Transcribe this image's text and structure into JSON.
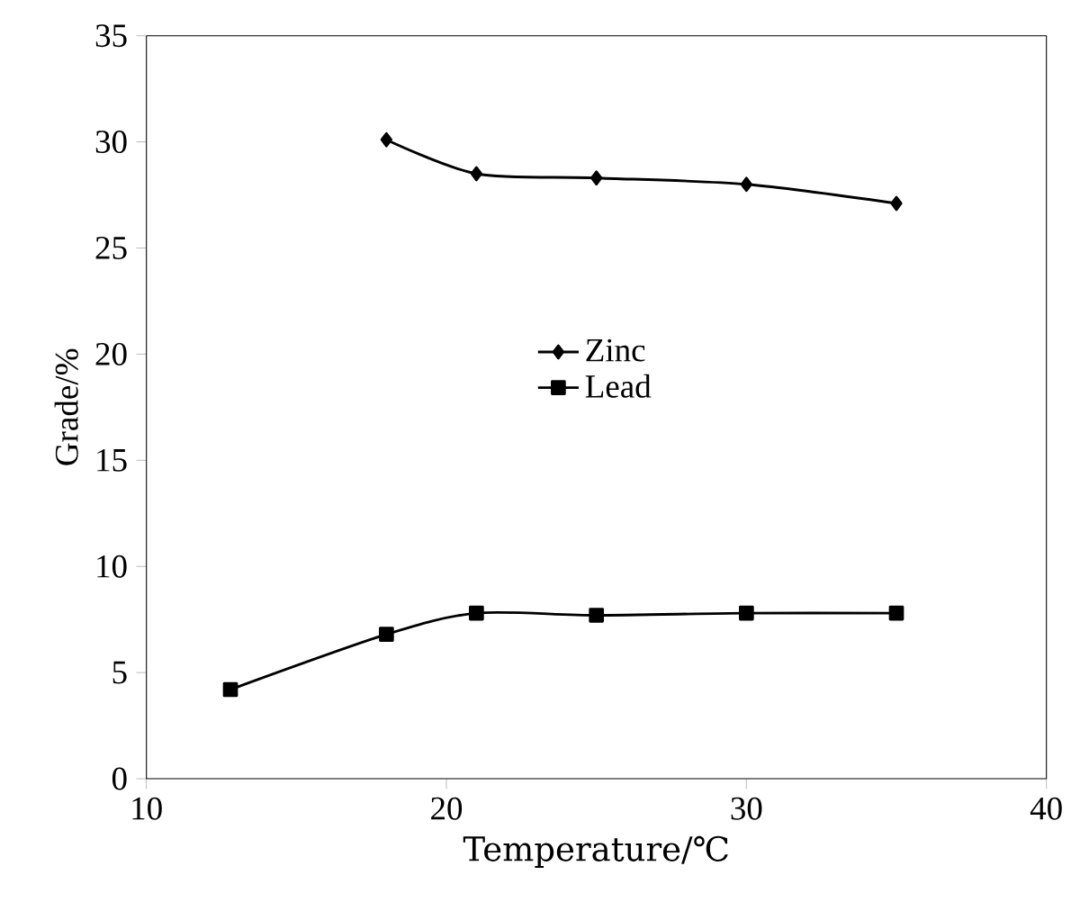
{
  "chart_data": {
    "type": "line",
    "xlabel": "Temperature/℃",
    "ylabel": "Grade/%",
    "xlim": [
      10,
      40
    ],
    "xticks": [
      10,
      20,
      30,
      40
    ],
    "ylim": [
      0,
      35
    ],
    "yticks": [
      0,
      5,
      10,
      15,
      20,
      25,
      30,
      35
    ],
    "legend": "center",
    "series": [
      {
        "name": "Zinc",
        "color": "#000000",
        "marker": "diamond",
        "x": [
          18,
          21,
          25,
          30,
          35
        ],
        "values": [
          30.1,
          28.5,
          28.3,
          28.0,
          27.1
        ]
      },
      {
        "name": "Lead",
        "color": "#000000",
        "marker": "square",
        "x": [
          12.8,
          18,
          21,
          25,
          30,
          35
        ],
        "values": [
          4.2,
          6.8,
          7.8,
          7.7,
          7.8,
          7.8
        ]
      }
    ]
  }
}
